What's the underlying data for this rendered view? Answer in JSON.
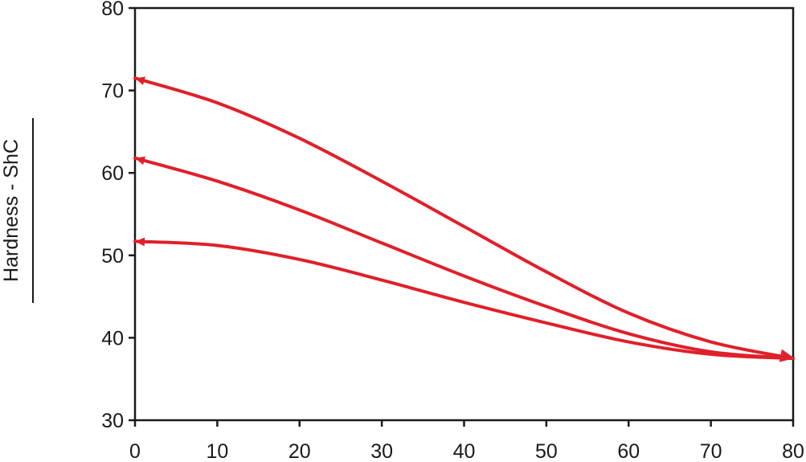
{
  "chart_data": {
    "type": "line",
    "ylabel": "Hardness - ShC",
    "xlabel": "",
    "xlim": [
      0,
      80
    ],
    "ylim": [
      30,
      80
    ],
    "x_ticks": [
      0,
      10,
      20,
      30,
      40,
      50,
      60,
      70,
      80
    ],
    "y_ticks": [
      30,
      40,
      50,
      60,
      70,
      80
    ],
    "grid": false,
    "line_color": "#e0202a",
    "series": [
      {
        "x": [
          0,
          10,
          20,
          30,
          40,
          50,
          60,
          70,
          80
        ],
        "values": [
          71.5,
          68.5,
          64.2,
          59.0,
          53.5,
          48.0,
          43.0,
          39.5,
          37.5
        ]
      },
      {
        "x": [
          0,
          10,
          20,
          30,
          40,
          50,
          60,
          70,
          80
        ],
        "values": [
          61.8,
          59.0,
          55.5,
          51.5,
          47.5,
          43.8,
          40.5,
          38.3,
          37.5
        ]
      },
      {
        "x": [
          0,
          10,
          20,
          30,
          40,
          50,
          60,
          70,
          80
        ],
        "values": [
          51.7,
          51.2,
          49.5,
          47.0,
          44.3,
          41.8,
          39.5,
          38.0,
          37.5
        ]
      }
    ]
  }
}
